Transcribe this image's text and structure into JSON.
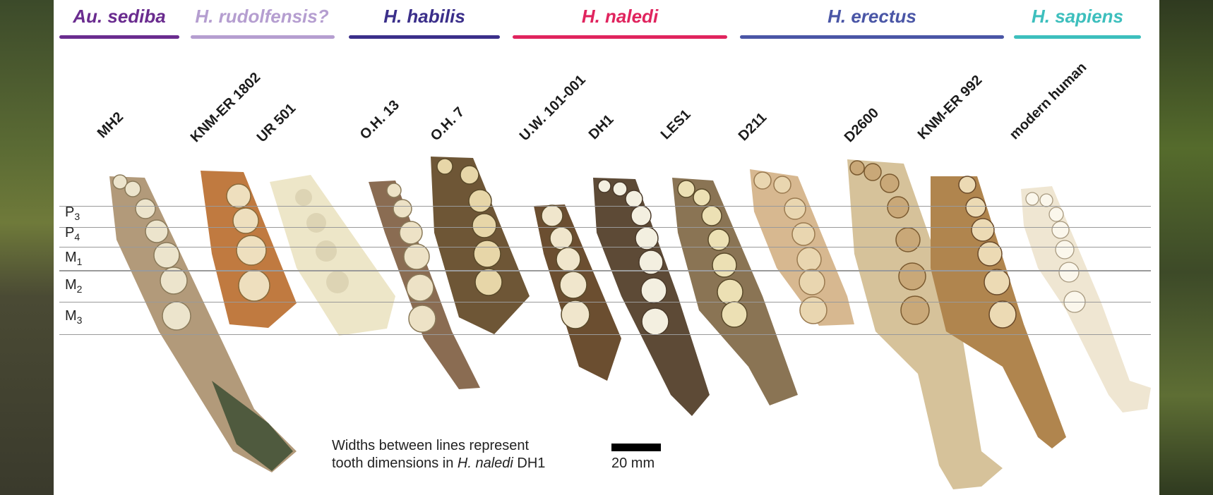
{
  "groups": [
    {
      "name": "Au. sediba",
      "color": "#6a2c8f"
    },
    {
      "name": "H. rudolfensis?",
      "color": "#b59ed0"
    },
    {
      "name": "H. habilis",
      "color": "#3b2f8a"
    },
    {
      "name": "H. naledi",
      "color": "#e0245e"
    },
    {
      "name": "H. erectus",
      "color": "#4a56a6"
    },
    {
      "name": "H. sapiens",
      "color": "#3dbfbd"
    }
  ],
  "specimens": [
    "MH2",
    "KNM-ER 1802",
    "UR 501",
    "O.H. 13",
    "O.H. 7",
    "U.W. 101-001",
    "DH1",
    "LES1",
    "D211",
    "D2600",
    "KNM-ER 992",
    "modern human"
  ],
  "teeth": [
    {
      "letter": "P",
      "sub": "3"
    },
    {
      "letter": "P",
      "sub": "4"
    },
    {
      "letter": "M",
      "sub": "1"
    },
    {
      "letter": "M",
      "sub": "2"
    },
    {
      "letter": "M",
      "sub": "3"
    }
  ],
  "caption": {
    "line1": "Widths between lines represent",
    "line2_prefix": "tooth dimensions in ",
    "line2_italic": "H. naledi",
    "line2_suffix": " DH1"
  },
  "scale_label": "20 mm"
}
